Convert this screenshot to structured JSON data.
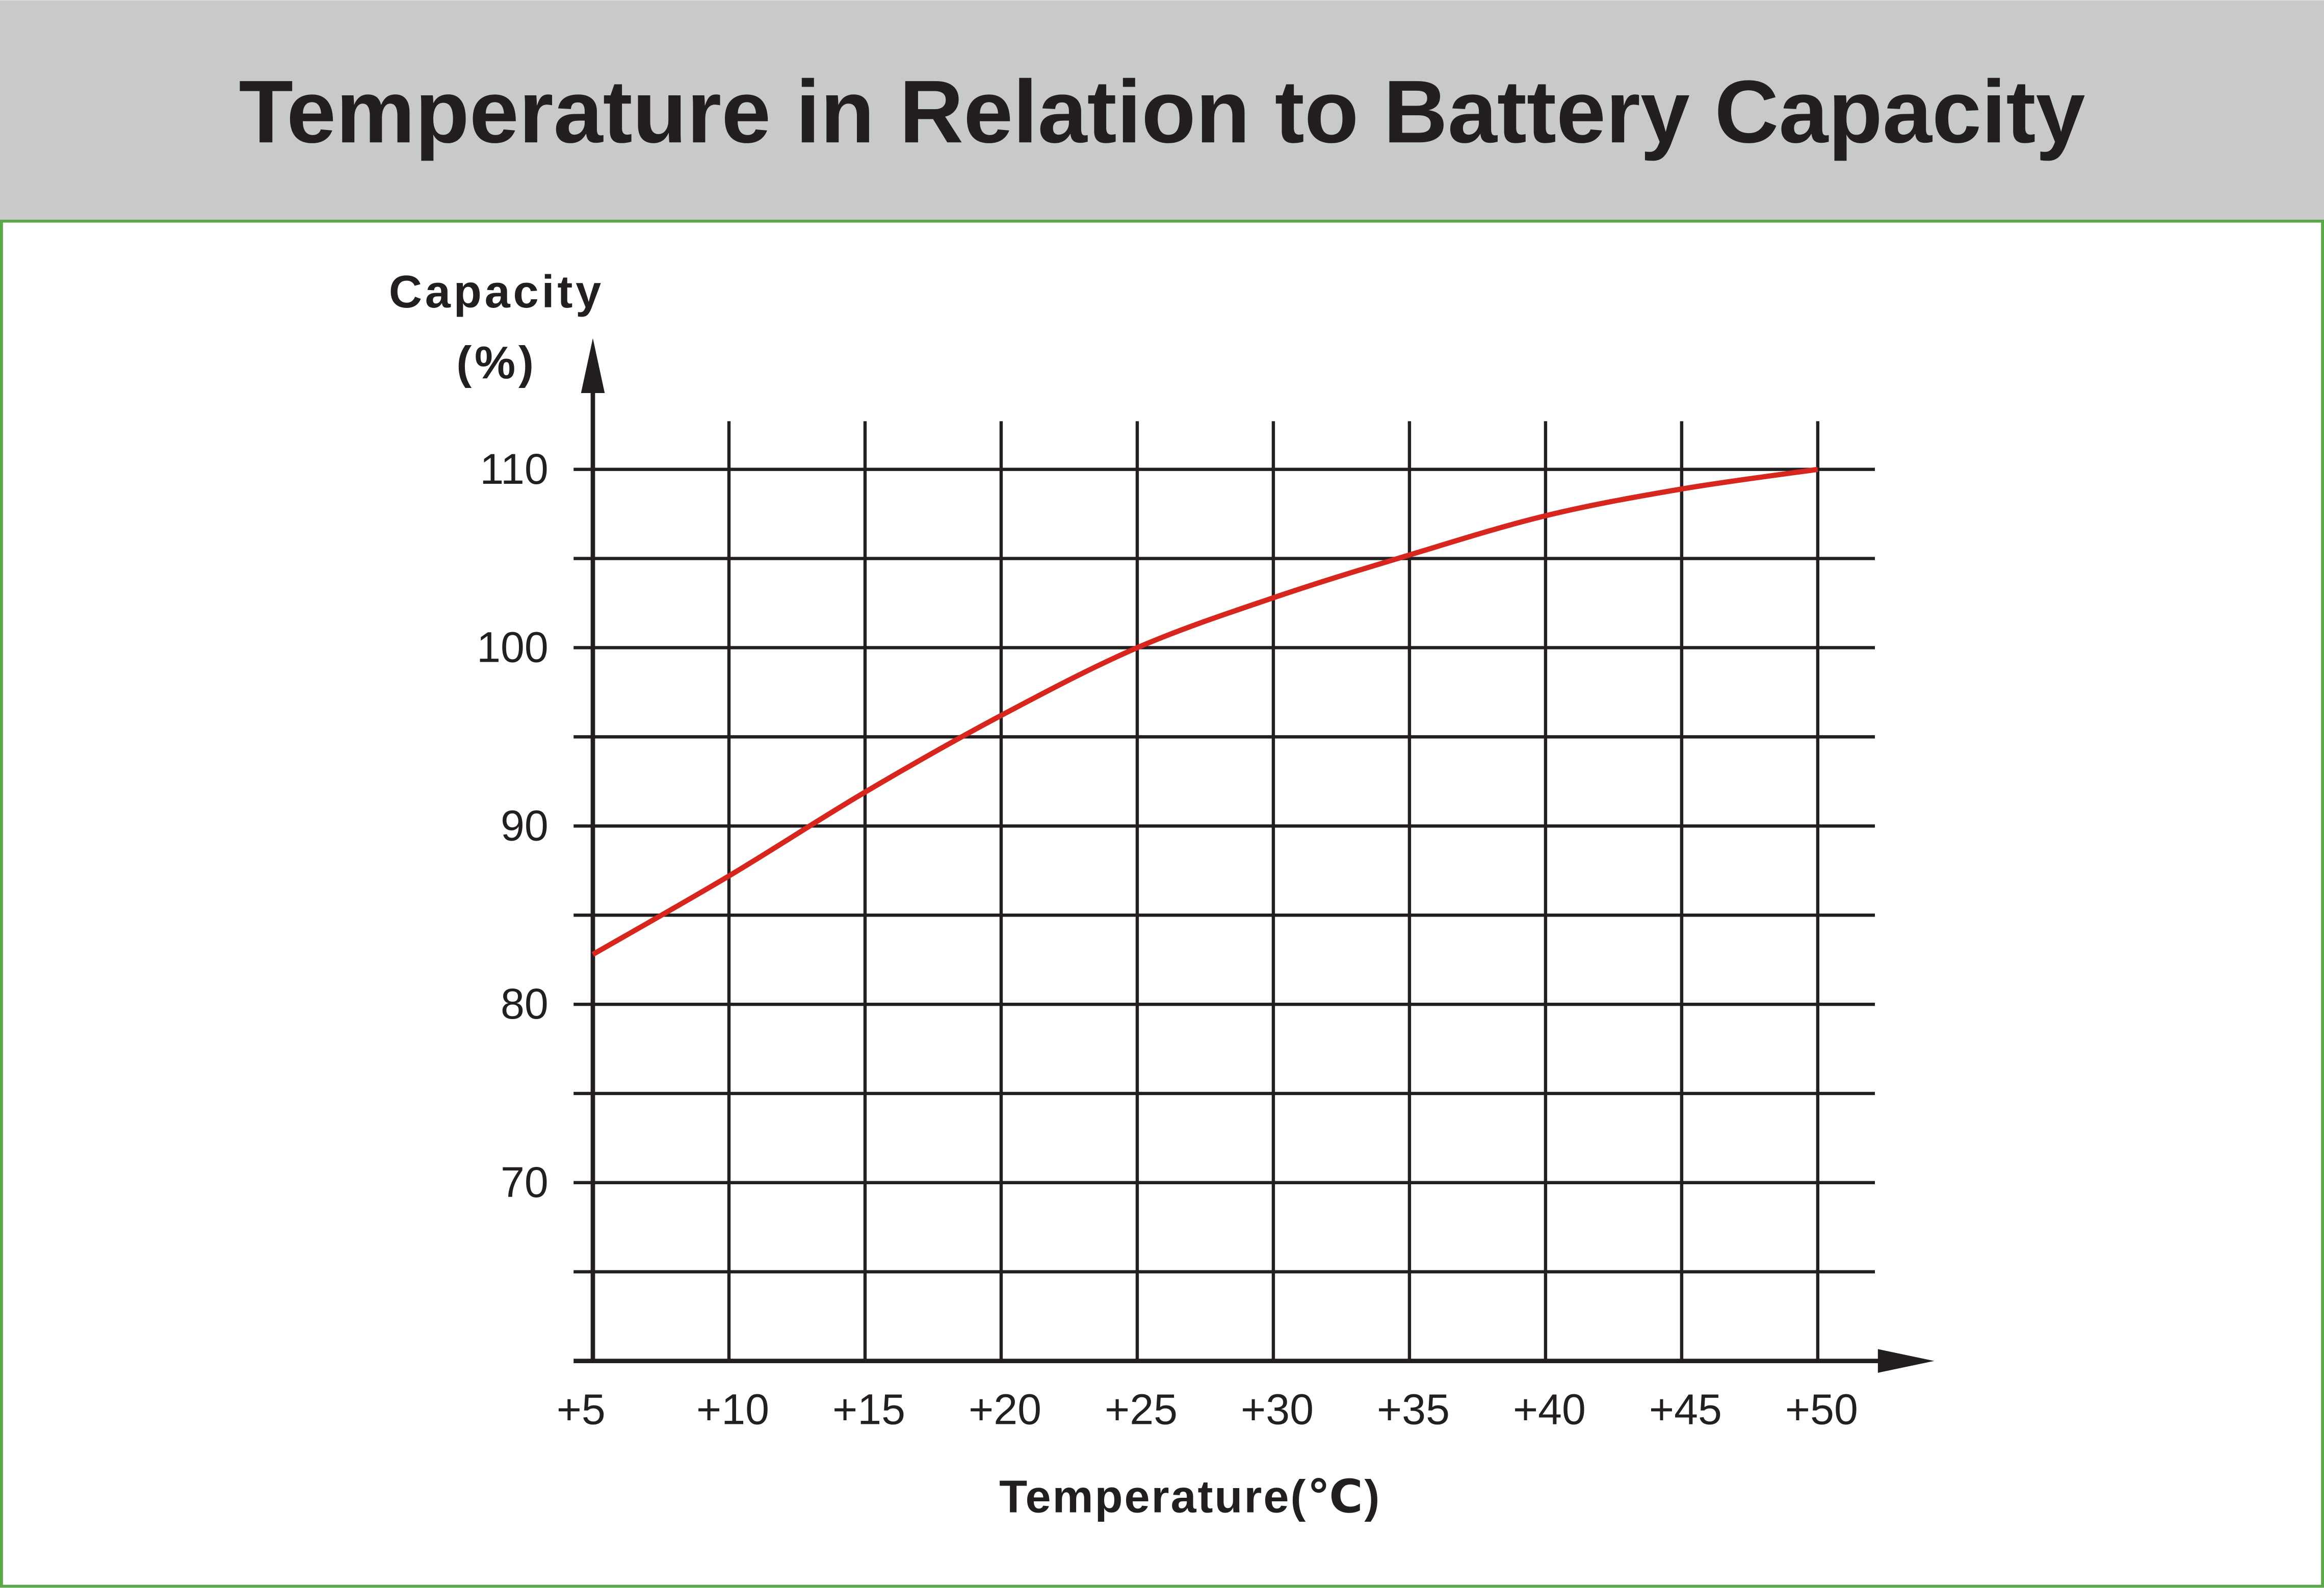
{
  "chart_data": {
    "type": "line",
    "title": "Temperature in Relation to Battery Capacity",
    "x_label": "Temperature(℃)",
    "y_label": [
      "Capacity",
      "(%)"
    ],
    "x": [
      5,
      10,
      15,
      20,
      25,
      30,
      35,
      40,
      45,
      50
    ],
    "series": [
      {
        "name": "Capacity",
        "color": "#d7261e",
        "values": [
          82.8,
          87.2,
          91.9,
          96.2,
          100,
          102.8,
          105.2,
          107.4,
          108.9,
          110
        ]
      }
    ],
    "xlim": [
      5,
      52.1
    ],
    "ylim": [
      60,
      112.7
    ],
    "xticks": [
      {
        "value": 5,
        "label": "+5"
      },
      {
        "value": 10,
        "label": "+10"
      },
      {
        "value": 15,
        "label": "+15"
      },
      {
        "value": 20,
        "label": "+20"
      },
      {
        "value": 25,
        "label": "+25"
      },
      {
        "value": 30,
        "label": "+30"
      },
      {
        "value": 35,
        "label": "+35"
      },
      {
        "value": 40,
        "label": "+40"
      },
      {
        "value": 45,
        "label": "+45"
      },
      {
        "value": 50,
        "label": "+50"
      }
    ],
    "yticks": [
      70,
      80,
      90,
      100,
      110
    ],
    "minor_yticks": [
      65,
      75,
      85,
      95,
      105
    ],
    "grid": true
  }
}
